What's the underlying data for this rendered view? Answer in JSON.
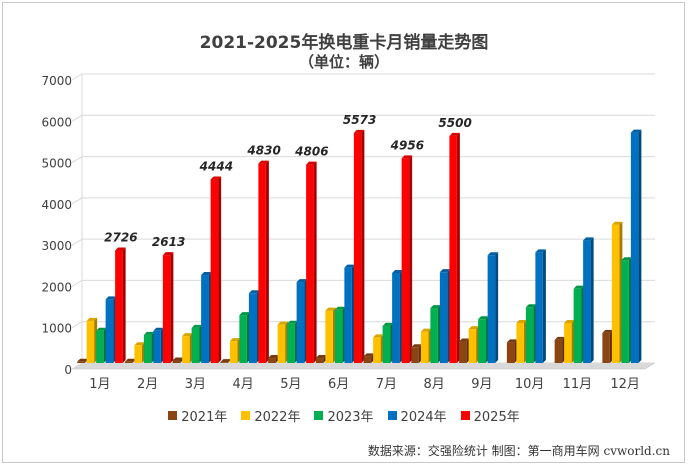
{
  "chart_data": {
    "type": "bar",
    "title": "2021-2025年换电重卡月销量走势图",
    "subtitle": "（单位：辆）",
    "categories": [
      "1月",
      "2月",
      "3月",
      "4月",
      "5月",
      "6月",
      "7月",
      "8月",
      "9月",
      "10月",
      "11月",
      "12月"
    ],
    "ylim": [
      0,
      7000
    ],
    "yticks": [
      0,
      1000,
      2000,
      3000,
      4000,
      5000,
      6000,
      7000
    ],
    "grid": true,
    "legend_position": "bottom",
    "series": [
      {
        "name": "2021年",
        "color": "#8B4513",
        "values": [
          30,
          30,
          60,
          20,
          120,
          120,
          160,
          380,
          520,
          500,
          560,
          730
        ]
      },
      {
        "name": "2022年",
        "color": "#FFC000",
        "values": [
          1020,
          430,
          650,
          530,
          930,
          1270,
          620,
          760,
          820,
          970,
          970,
          3350
        ]
      },
      {
        "name": "2023年",
        "color": "#00B050",
        "values": [
          780,
          680,
          850,
          1160,
          950,
          1290,
          900,
          1330,
          1060,
          1350,
          1800,
          2490
        ]
      },
      {
        "name": "2024年",
        "color": "#0070C0",
        "values": [
          1540,
          780,
          2130,
          1690,
          1960,
          2310,
          2180,
          2200,
          2610,
          2680,
          2970,
          5580
        ]
      },
      {
        "name": "2025年",
        "color": "#FF0000",
        "values": [
          2726,
          2613,
          4444,
          4830,
          4806,
          5573,
          4956,
          5500,
          null,
          null,
          null,
          null
        ]
      }
    ],
    "data_labels": {
      "series": "2025年",
      "values": [
        "2726",
        "2613",
        "4444",
        "4830",
        "4806",
        "5573",
        "4956",
        "5500"
      ]
    }
  },
  "source": "数据来源：交强险统计  制图：第一商用车网 cvworld.cn"
}
